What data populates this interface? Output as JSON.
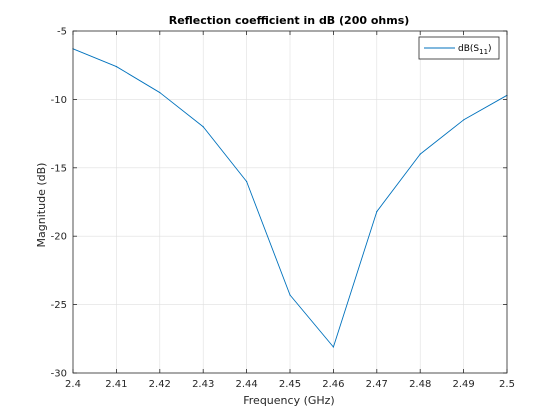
{
  "chart_data": {
    "type": "line",
    "title": "Reflection coefficient in dB (200 ohms)",
    "xlabel": "Frequency (GHz)",
    "ylabel": "Magnitude (dB)",
    "xlim": [
      2.4,
      2.5
    ],
    "ylim": [
      -30,
      -5
    ],
    "grid": true,
    "legend_position": "top-right",
    "x_ticks": [
      "2.4",
      "2.41",
      "2.42",
      "2.43",
      "2.44",
      "2.45",
      "2.46",
      "2.47",
      "2.48",
      "2.49",
      "2.5"
    ],
    "y_ticks": [
      "-30",
      "-25",
      "-20",
      "-15",
      "-10",
      "-5"
    ],
    "series": [
      {
        "name": "dB(S11)",
        "legend_main": "dB(S",
        "legend_sub": "11",
        "legend_end": ")",
        "color": "#0072bd",
        "x": [
          2.4,
          2.41,
          2.42,
          2.43,
          2.44,
          2.45,
          2.46,
          2.47,
          2.48,
          2.49,
          2.5
        ],
        "y": [
          -6.3,
          -7.6,
          -9.5,
          -12.0,
          -16.0,
          -24.3,
          -28.1,
          -18.2,
          -14.0,
          -11.5,
          -9.7
        ]
      }
    ]
  }
}
